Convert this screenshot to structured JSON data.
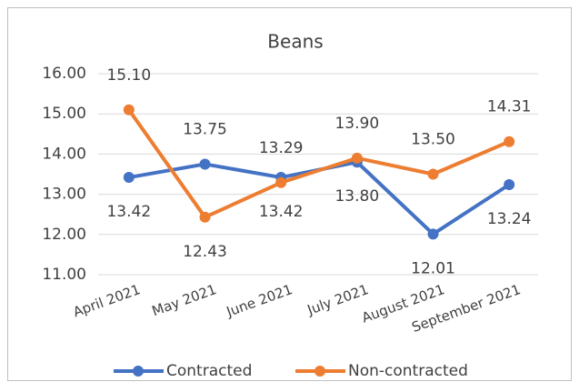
{
  "chart_data": {
    "type": "line",
    "title": "Beans",
    "categories": [
      "April 2021",
      "May 2021",
      "June 2021",
      "July 2021",
      "August 2021",
      "September 2021"
    ],
    "series": [
      {
        "name": "Contracted",
        "color": "#4472c4",
        "values": [
          13.42,
          13.75,
          13.42,
          13.8,
          12.01,
          13.24
        ],
        "value_labels": [
          "13.42",
          "13.75",
          "13.42",
          "13.80",
          "12.01",
          "13.24"
        ]
      },
      {
        "name": "Non-contracted",
        "color": "#ed7d31",
        "values": [
          15.1,
          12.43,
          13.29,
          13.9,
          13.5,
          14.31
        ],
        "value_labels": [
          "15.10",
          "12.43",
          "13.29",
          "13.90",
          "13.50",
          "14.31"
        ]
      }
    ],
    "ylim": [
      11,
      16
    ],
    "yticks": [
      {
        "value": 11,
        "label": "11.00"
      },
      {
        "value": 12,
        "label": "12.00"
      },
      {
        "value": 13,
        "label": "13.00"
      },
      {
        "value": 14,
        "label": "14.00"
      },
      {
        "value": 15,
        "label": "15.00"
      },
      {
        "value": 16,
        "label": "16.00"
      }
    ],
    "grid": true,
    "legend": "bottom"
  }
}
